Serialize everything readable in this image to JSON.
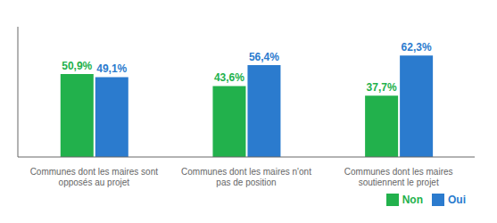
{
  "chart_data": {
    "type": "bar",
    "categories": [
      "Communes dont les maires sont\nopposés au projet",
      "Communes dont les maires n'ont\npas de position",
      "Communes dont les maires\nsoutiennent le projet"
    ],
    "series": [
      {
        "name": "Non",
        "color": "#22b14c",
        "values": [
          50.9,
          43.6,
          37.7
        ],
        "value_labels": [
          "50,9%",
          "43,6%",
          "37,7%"
        ]
      },
      {
        "name": "Oui",
        "color": "#2b7bce",
        "values": [
          49.1,
          56.4,
          62.3
        ],
        "value_labels": [
          "49,1%",
          "56,4%",
          "62,3%"
        ]
      }
    ],
    "ylim": [
      0,
      80
    ],
    "tick_labels": "x",
    "data_labels": true,
    "legend": "lower right",
    "grid": false
  }
}
